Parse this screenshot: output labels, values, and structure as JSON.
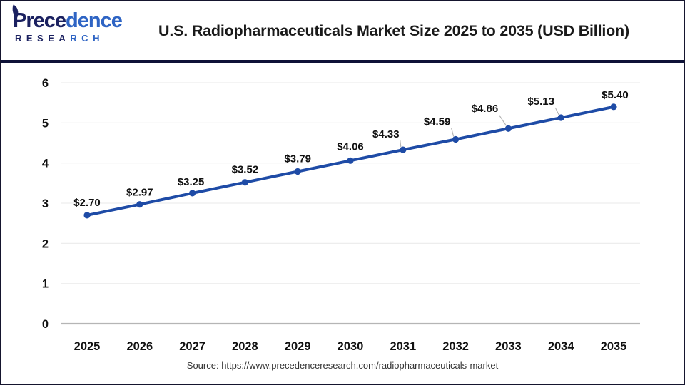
{
  "header": {
    "title": "U.S. Radiopharmaceuticals Market Size 2025 to 2035 (USD Billion)"
  },
  "logo": {
    "word_part1": "Prece",
    "word_part2": "dence",
    "sub_part1": "RESEA",
    "sub_part2": "RCH",
    "navy_color": "#1b2160",
    "blue_color": "#2e64c4"
  },
  "footer": {
    "source": "Source: https://www.precedenceresearch.com/radiopharmaceuticals-market"
  },
  "chart_data": {
    "type": "line",
    "title": "U.S. Radiopharmaceuticals Market Size 2025 to 2035 (USD Billion)",
    "categories": [
      "2025",
      "2026",
      "2027",
      "2028",
      "2029",
      "2030",
      "2031",
      "2032",
      "2033",
      "2034",
      "2035"
    ],
    "values": [
      2.7,
      2.97,
      3.25,
      3.52,
      3.79,
      4.06,
      4.33,
      4.59,
      4.86,
      5.13,
      5.4
    ],
    "point_labels": [
      "$2.70",
      "$2.97",
      "$3.25",
      "$3.52",
      "$3.79",
      "$4.06",
      "$4.33",
      "$4.59",
      "$4.86",
      "$5.13",
      "$5.40"
    ],
    "unit": "USD Billion",
    "xlabel": "",
    "ylabel": "",
    "ylim": [
      0,
      6
    ],
    "yticks": [
      0,
      1,
      2,
      3,
      4,
      5,
      6
    ],
    "grid": true,
    "legend": "none",
    "line_color": "#1e4ba6",
    "marker_color": "#1e4ba6",
    "label_color": "#111111",
    "grid_color": "#ededed",
    "axis_color": "#b5b5b5",
    "leader_line_color": "#b0b0b0"
  }
}
